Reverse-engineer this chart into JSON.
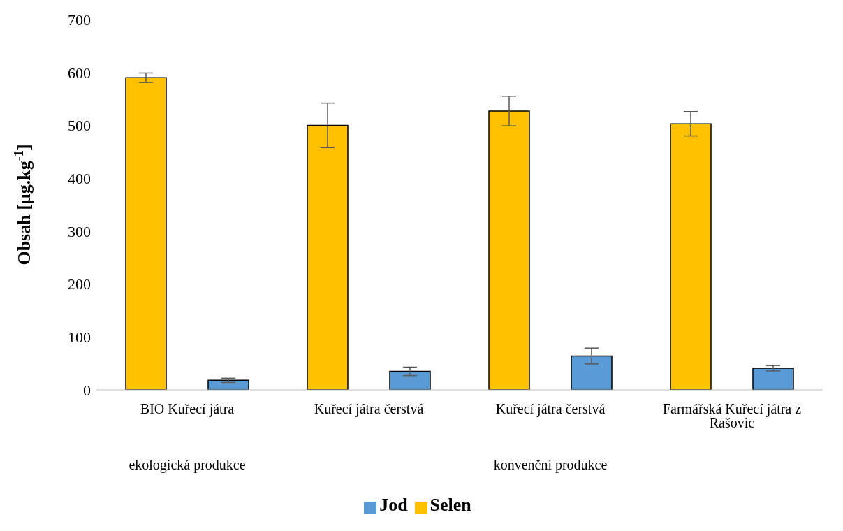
{
  "chart_data": {
    "type": "bar",
    "ylabel": "Obsah [µg.kg$^{-1}$]",
    "categories": [
      "BIO Kuřecí játra",
      "Kuřecí játra čerstvá",
      "Kuřecí játra čerstvá",
      "Farmářská Kuřecí játra z Rašovic"
    ],
    "series": [
      {
        "name": "Selen",
        "color": "#ffc000",
        "values": [
          590,
          500,
          527,
          503
        ],
        "errors": [
          9,
          42,
          28,
          23
        ]
      },
      {
        "name": "Jod",
        "color": "#5b9bd5",
        "values": [
          18,
          35,
          64,
          41
        ],
        "errors": [
          4,
          8,
          15,
          5
        ]
      }
    ],
    "ylim": [
      0,
      700
    ],
    "yticks": [
      0,
      100,
      200,
      300,
      400,
      500,
      600,
      700
    ],
    "legend": "bottom",
    "annotations": [
      "ekologická produkce",
      "konvenční produkce"
    ]
  }
}
